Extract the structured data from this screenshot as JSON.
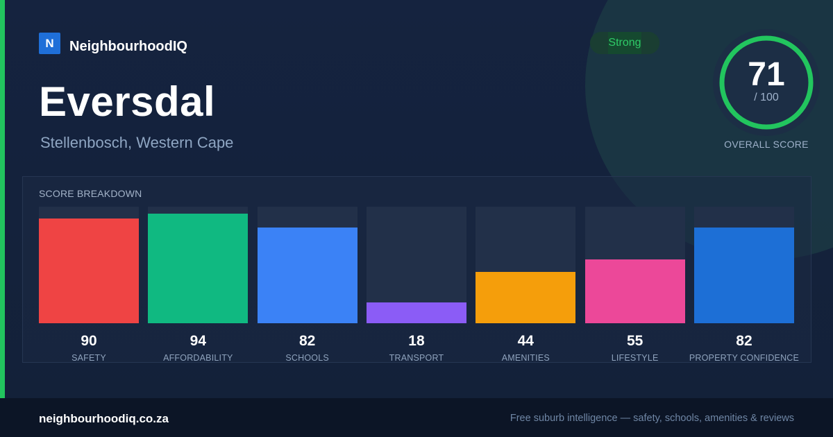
{
  "brand": {
    "logo_letter": "N",
    "name": "NeighbourhoodIQ"
  },
  "suburb": {
    "name": "Eversdal",
    "location": "Stellenbosch, Western Cape"
  },
  "rating_badge": "Strong",
  "overall": {
    "score": "71",
    "denominator": "/ 100",
    "label": "OVERALL SCORE",
    "max": 100,
    "ring_color": "#22c55e"
  },
  "breakdown": {
    "title": "SCORE BREAKDOWN",
    "items": [
      {
        "value": 90,
        "label": "SAFETY",
        "color": "#ef4444"
      },
      {
        "value": 94,
        "label": "AFFORDABILITY",
        "color": "#10b981"
      },
      {
        "value": 82,
        "label": "SCHOOLS",
        "color": "#3b82f6"
      },
      {
        "value": 18,
        "label": "TRANSPORT",
        "color": "#8b5cf6"
      },
      {
        "value": 44,
        "label": "AMENITIES",
        "color": "#f59e0b"
      },
      {
        "value": 55,
        "label": "LIFESTYLE",
        "color": "#ec4899"
      },
      {
        "value": 82,
        "label": "PROPERTY CONFIDENCE",
        "color": "#1d6fd6"
      }
    ]
  },
  "footer": {
    "site": "neighbourhoodiq.co.za",
    "tagline": "Free suburb intelligence — safety, schools, amenities & reviews"
  },
  "colors": {
    "accent": "#22c55e",
    "background": "#13203a",
    "footer": "#0c1526"
  }
}
